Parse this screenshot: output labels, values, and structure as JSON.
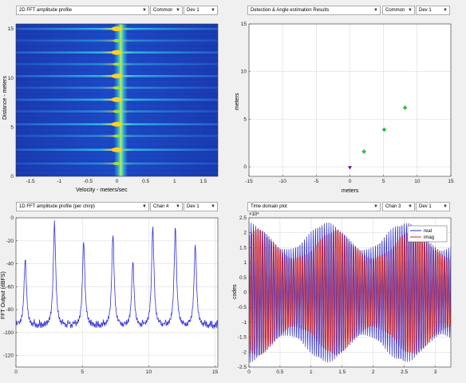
{
  "panels": {
    "top_left": {
      "selects": [
        {
          "value": "2D FFT amplitude profile"
        },
        {
          "value": "Common"
        },
        {
          "value": "Dev 1"
        }
      ],
      "ylabel": "Distance - meters",
      "xlabel": "Velocity - meters/sec",
      "xticks": [
        "-1.5",
        "-1",
        "-0.5",
        "0",
        "0.5",
        "1",
        "1.5"
      ],
      "yticks": [
        "0",
        "5",
        "10",
        "15"
      ]
    },
    "top_right": {
      "selects": [
        {
          "value": "Detection & Angle estimation Results"
        },
        {
          "value": "Common"
        },
        {
          "value": "Dev 1"
        }
      ],
      "ylabel": "meters",
      "xlabel": "meters",
      "xticks": [
        "-15",
        "-10",
        "-5",
        "0",
        "5",
        "10",
        "15"
      ],
      "yticks": [
        "0",
        "5",
        "10",
        "15"
      ]
    },
    "bottom_left": {
      "selects": [
        {
          "value": "1D FFT amplitude profile (per chirp)"
        },
        {
          "value": "Chan 4"
        },
        {
          "value": "Dev 1"
        }
      ],
      "ylabel": "FFT Output (dBFS)",
      "xticks": [
        "0",
        "5",
        "10",
        "15"
      ],
      "yticks": [
        "0",
        "-20",
        "-40",
        "-60",
        "-80",
        "-100",
        "-120"
      ]
    },
    "bottom_right": {
      "selects": [
        {
          "value": "Time domain plot"
        },
        {
          "value": "Chan 3"
        },
        {
          "value": "Dev 1"
        }
      ],
      "ylabel": "codes",
      "exponent": "×10⁴",
      "legend": [
        "real",
        "imag"
      ],
      "xticks": [
        "0",
        "0.5",
        "1",
        "1.5",
        "2",
        "2.5",
        "3"
      ],
      "yticks": [
        "2.5",
        "2",
        "1.5",
        "1",
        "0.5",
        "0",
        "-0.5",
        "-1",
        "-1.5",
        "-2",
        "-2.5"
      ]
    }
  },
  "chart_data": [
    {
      "type": "heatmap",
      "xlabel": "Velocity - meters/sec",
      "ylabel": "Distance - meters",
      "xlim": [
        -1.75,
        1.75
      ],
      "ylim": [
        0,
        15.5
      ],
      "bright_stripe_distances": [
        1.3,
        2.7,
        4.1,
        5.3,
        6.6,
        7.8,
        9.0,
        10.2,
        11.4,
        12.6,
        13.8,
        15.0
      ],
      "peak_velocity": 0
    },
    {
      "type": "scatter",
      "xlabel": "meters",
      "ylabel": "meters",
      "xlim": [
        -15,
        15
      ],
      "ylim": [
        -1,
        15
      ],
      "grid": true,
      "points": [
        {
          "x": 0,
          "y": -0.1,
          "marker": "triangle",
          "color": "#5b0a91"
        },
        {
          "x": 2.1,
          "y": 1.6,
          "marker": "diamond",
          "color": "#22cc44"
        },
        {
          "x": 5.1,
          "y": 3.9,
          "marker": "diamond",
          "color": "#22cc44"
        },
        {
          "x": 8.2,
          "y": 6.2,
          "marker": "diamond",
          "color": "#22cc44"
        }
      ]
    },
    {
      "type": "line",
      "ylabel": "FFT Output (dBFS)",
      "xlim": [
        0,
        15.2
      ],
      "ylim": [
        -130,
        0
      ],
      "grid": true,
      "color": "#3333dd",
      "base_level": -95,
      "peaks": [
        {
          "x": 0.7,
          "y": -36
        },
        {
          "x": 2.9,
          "y": -4
        },
        {
          "x": 5.1,
          "y": -20
        },
        {
          "x": 7.3,
          "y": -14
        },
        {
          "x": 8.8,
          "y": -38
        },
        {
          "x": 10.3,
          "y": -8
        },
        {
          "x": 12.0,
          "y": -8
        },
        {
          "x": 13.5,
          "y": -23
        }
      ]
    },
    {
      "type": "line",
      "ylabel": "codes",
      "xlim": [
        0,
        3.25
      ],
      "ylim": [
        -2.5,
        2.5
      ],
      "grid": true,
      "series": [
        {
          "name": "real",
          "color": "#2a2ad4"
        },
        {
          "name": "imag",
          "color": "#d42a2a"
        }
      ]
    }
  ]
}
